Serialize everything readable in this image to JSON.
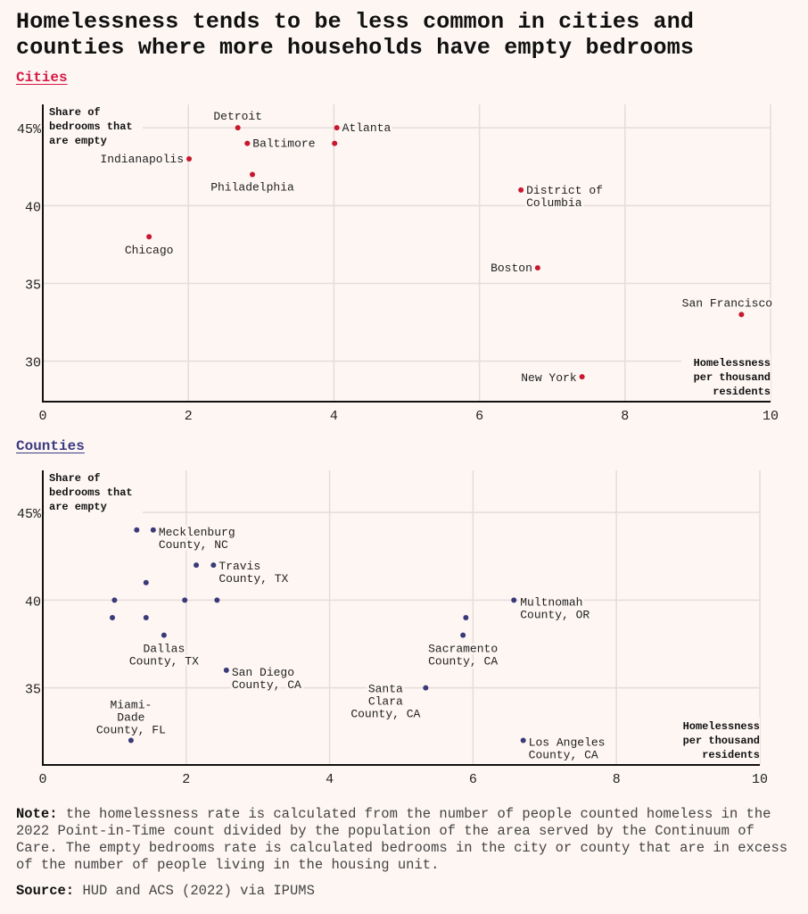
{
  "title": [
    "Homelessness tends to be less common in cities and",
    "counties where more households have empty bedrooms"
  ],
  "colors": {
    "cities": "#c8172e",
    "counties": "#3a3a78",
    "grid": "#e6dcdb",
    "background": "#fdf6f3"
  },
  "chart_data": [
    {
      "type": "scatter",
      "title": "Cities",
      "xlabel": "Homelessness per thousand residents",
      "ylabel": "Share of bedrooms that are empty",
      "xlim": [
        0,
        10
      ],
      "ylim": [
        27.4,
        46.5
      ],
      "xticks": [
        "0",
        "2",
        "4",
        "6",
        "8",
        "10"
      ],
      "xtick_values": [
        0,
        2,
        4,
        6,
        8,
        10
      ],
      "yticks": [
        "45%",
        "40",
        "35",
        "30"
      ],
      "ytick_values": [
        45,
        40,
        35,
        30
      ],
      "ylabel_lines": [
        "Share of",
        "bedrooms that",
        "are empty"
      ],
      "xlabel_lines": [
        "Homelessness",
        "per thousand",
        "residents"
      ],
      "grid": true,
      "points": [
        {
          "x": 2.68,
          "y": 45,
          "label": [
            "Detroit"
          ]
        },
        {
          "x": 4.04,
          "y": 45,
          "label": [
            "Atlanta"
          ]
        },
        {
          "x": 2.81,
          "y": 44,
          "label": [
            "Baltimore"
          ]
        },
        {
          "x": 4.01,
          "y": 44,
          "label": []
        },
        {
          "x": 2.01,
          "y": 43,
          "label": [
            "Indianapolis"
          ]
        },
        {
          "x": 2.88,
          "y": 42,
          "label": [
            "Philadelphia"
          ]
        },
        {
          "x": 6.57,
          "y": 41,
          "label": [
            "District of",
            "Columbia"
          ]
        },
        {
          "x": 1.46,
          "y": 38,
          "label": [
            "Chicago"
          ]
        },
        {
          "x": 6.8,
          "y": 36,
          "label": [
            "Boston"
          ]
        },
        {
          "x": 9.6,
          "y": 33,
          "label": [
            "San Francisco"
          ]
        },
        {
          "x": 7.41,
          "y": 29,
          "label": [
            "New York"
          ]
        }
      ]
    },
    {
      "type": "scatter",
      "title": "Counties",
      "xlabel": "Homelessness per thousand residents",
      "ylabel": "Share of bedrooms that are empty",
      "xlim": [
        0,
        10
      ],
      "ylim": [
        30.6,
        47.4
      ],
      "xticks": [
        "0",
        "2",
        "4",
        "6",
        "8",
        "10"
      ],
      "xtick_values": [
        0,
        2,
        4,
        6,
        8,
        10
      ],
      "yticks": [
        "45%",
        "40",
        "35"
      ],
      "ytick_values": [
        45,
        40,
        35
      ],
      "ylabel_lines": [
        "Share of",
        "bedrooms that",
        "are empty"
      ],
      "xlabel_lines": [
        "Homelessness",
        "per thousand",
        "residents"
      ],
      "grid": true,
      "points": [
        {
          "x": 1.31,
          "y": 44,
          "label": []
        },
        {
          "x": 1.54,
          "y": 44,
          "label": [
            "Mecklenburg",
            "County, NC"
          ]
        },
        {
          "x": 2.14,
          "y": 42,
          "label": []
        },
        {
          "x": 2.38,
          "y": 42,
          "label": [
            "Travis",
            "County, TX"
          ]
        },
        {
          "x": 1.44,
          "y": 41,
          "label": []
        },
        {
          "x": 1.0,
          "y": 40,
          "label": []
        },
        {
          "x": 1.98,
          "y": 40,
          "label": []
        },
        {
          "x": 2.43,
          "y": 40,
          "label": []
        },
        {
          "x": 0.97,
          "y": 39,
          "label": []
        },
        {
          "x": 1.44,
          "y": 39,
          "label": []
        },
        {
          "x": 1.69,
          "y": 38,
          "label": [
            "Dallas",
            "County, TX"
          ]
        },
        {
          "x": 2.56,
          "y": 36,
          "label": [
            "San Diego",
            "County, CA"
          ]
        },
        {
          "x": 1.23,
          "y": 32,
          "label": [
            "Miami-",
            "Dade",
            "County, FL"
          ]
        },
        {
          "x": 5.34,
          "y": 35,
          "label": [
            "Santa",
            "Clara",
            "County, CA"
          ]
        },
        {
          "x": 5.86,
          "y": 38,
          "label": [
            "Sacramento",
            "County, CA"
          ]
        },
        {
          "x": 5.9,
          "y": 39,
          "label": []
        },
        {
          "x": 6.57,
          "y": 40,
          "label": [
            "Multnomah",
            "County, OR"
          ]
        },
        {
          "x": 6.7,
          "y": 32,
          "label": [
            "Los Angeles",
            "County, CA"
          ]
        }
      ]
    }
  ],
  "note": {
    "label": "Note:",
    "text": "the homelessness rate is calculated from the number of people counted homeless in the 2022 Point-in-Time count divided by the population of the area served by the Continuum of Care. The empty bedrooms rate is calculated bedrooms in the city or county that are in excess of the number of people living in the housing unit."
  },
  "source": {
    "label": "Source:",
    "text": "HUD and ACS (2022) via IPUMS"
  }
}
